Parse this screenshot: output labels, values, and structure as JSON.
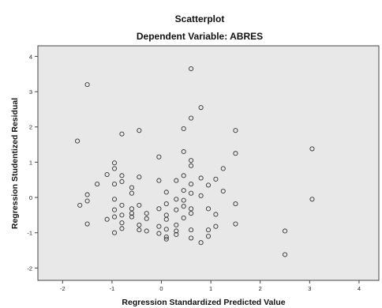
{
  "chart_data": {
    "type": "scatter",
    "title": "Scatterplot",
    "subtitle": "Dependent Variable: ABRES",
    "xlabel": "Regression Standardized Predicted Value",
    "ylabel": "Regression Studentized Residual",
    "xlim": [
      -2.5,
      4.4
    ],
    "ylim": [
      -2.35,
      4.3
    ],
    "xticks": [
      "-2",
      "-1",
      "0",
      "1",
      "2",
      "3",
      "4"
    ],
    "yticks": [
      "-2",
      "-1",
      "0",
      "1",
      "2",
      "3",
      "4"
    ],
    "grid": false,
    "colors": {
      "plot_background": "#e8e8e8",
      "marker_edge": "#333333"
    },
    "series": [
      {
        "marker": "hollow-circle",
        "points": [
          [
            -1.5,
            3.2
          ],
          [
            0.6,
            3.65
          ],
          [
            0.8,
            2.55
          ],
          [
            0.6,
            2.25
          ],
          [
            0.45,
            1.95
          ],
          [
            1.5,
            1.9
          ],
          [
            -0.45,
            1.9
          ],
          [
            -0.8,
            1.8
          ],
          [
            -1.7,
            1.6
          ],
          [
            3.05,
            1.38
          ],
          [
            0.45,
            1.3
          ],
          [
            1.5,
            1.25
          ],
          [
            -0.05,
            1.15
          ],
          [
            0.6,
            1.05
          ],
          [
            0.6,
            0.9
          ],
          [
            -0.95,
            0.98
          ],
          [
            -0.95,
            0.82
          ],
          [
            1.25,
            0.82
          ],
          [
            -1.1,
            0.65
          ],
          [
            -0.8,
            0.62
          ],
          [
            -0.45,
            0.58
          ],
          [
            0.45,
            0.62
          ],
          [
            0.3,
            0.48
          ],
          [
            0.8,
            0.55
          ],
          [
            1.1,
            0.52
          ],
          [
            -1.3,
            0.38
          ],
          [
            -0.95,
            0.38
          ],
          [
            -0.8,
            0.45
          ],
          [
            -0.05,
            0.48
          ],
          [
            0.6,
            0.38
          ],
          [
            0.95,
            0.35
          ],
          [
            -0.6,
            0.28
          ],
          [
            0.45,
            0.2
          ],
          [
            1.25,
            0.18
          ],
          [
            -1.5,
            0.08
          ],
          [
            -0.6,
            0.12
          ],
          [
            0.1,
            0.15
          ],
          [
            0.6,
            0.12
          ],
          [
            0.8,
            0.05
          ],
          [
            -1.5,
            -0.1
          ],
          [
            -0.95,
            -0.05
          ],
          [
            0.3,
            -0.05
          ],
          [
            0.45,
            -0.08
          ],
          [
            3.05,
            -0.05
          ],
          [
            -1.65,
            -0.22
          ],
          [
            -0.8,
            -0.22
          ],
          [
            -0.45,
            -0.22
          ],
          [
            0.1,
            -0.18
          ],
          [
            0.45,
            -0.25
          ],
          [
            1.5,
            -0.18
          ],
          [
            -0.95,
            -0.35
          ],
          [
            -0.6,
            -0.32
          ],
          [
            -0.05,
            -0.32
          ],
          [
            0.3,
            -0.35
          ],
          [
            0.6,
            -0.32
          ],
          [
            0.95,
            -0.32
          ],
          [
            -0.8,
            -0.5
          ],
          [
            -0.6,
            -0.45
          ],
          [
            -0.3,
            -0.45
          ],
          [
            0.1,
            -0.5
          ],
          [
            0.6,
            -0.45
          ],
          [
            1.1,
            -0.48
          ],
          [
            -1.1,
            -0.62
          ],
          [
            -0.95,
            -0.55
          ],
          [
            -0.6,
            -0.55
          ],
          [
            -0.3,
            -0.6
          ],
          [
            0.1,
            -0.62
          ],
          [
            0.45,
            -0.58
          ],
          [
            -1.5,
            -0.75
          ],
          [
            -0.8,
            -0.72
          ],
          [
            -0.45,
            -0.78
          ],
          [
            -0.05,
            -0.82
          ],
          [
            0.3,
            -0.78
          ],
          [
            1.1,
            -0.82
          ],
          [
            1.5,
            -0.75
          ],
          [
            -0.8,
            -0.88
          ],
          [
            -0.45,
            -0.92
          ],
          [
            0.1,
            -0.9
          ],
          [
            0.3,
            -0.95
          ],
          [
            0.6,
            -0.92
          ],
          [
            0.95,
            -0.92
          ],
          [
            -0.95,
            -1.0
          ],
          [
            -0.3,
            -0.95
          ],
          [
            -0.05,
            -1.02
          ],
          [
            0.3,
            -1.05
          ],
          [
            0.1,
            -1.12
          ],
          [
            0.1,
            -1.18
          ],
          [
            0.6,
            -1.15
          ],
          [
            0.95,
            -1.1
          ],
          [
            0.8,
            -1.28
          ],
          [
            2.5,
            -0.95
          ],
          [
            2.5,
            -1.62
          ]
        ]
      }
    ]
  }
}
